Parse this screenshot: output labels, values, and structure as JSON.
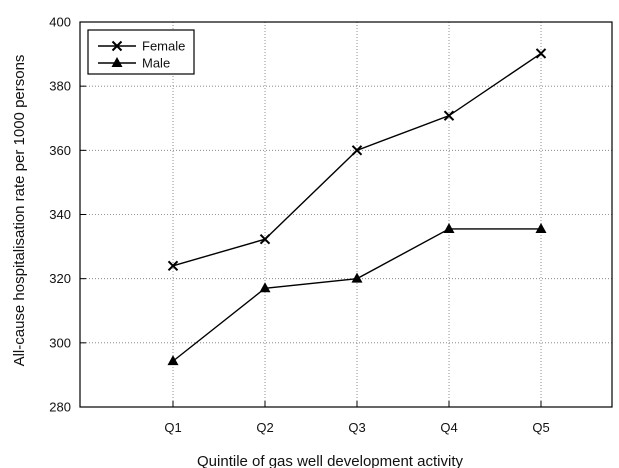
{
  "chart_data": {
    "type": "line",
    "title": "",
    "xlabel": "Quintile of gas well development activity",
    "ylabel": "All-cause hospitalisation rate per 1000 persons",
    "categories": [
      "Q1",
      "Q2",
      "Q3",
      "Q4",
      "Q5"
    ],
    "ylim": [
      280,
      400
    ],
    "yticks": [
      280,
      300,
      320,
      340,
      360,
      380,
      400
    ],
    "grid": true,
    "legend_position": "top-left",
    "series": [
      {
        "name": "Female",
        "marker": "x",
        "color": "#000000",
        "values": [
          324,
          332.3,
          360,
          370.8,
          390.2
        ]
      },
      {
        "name": "Male",
        "marker": "triangle",
        "color": "#000000",
        "values": [
          294.3,
          317,
          320,
          335.5,
          335.5
        ]
      }
    ]
  }
}
